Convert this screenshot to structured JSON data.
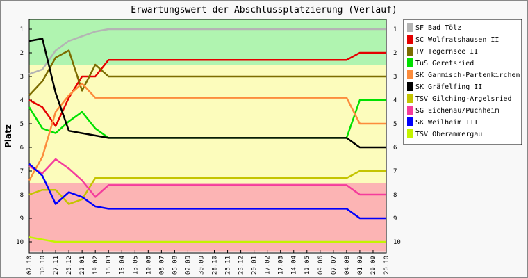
{
  "chart_data": {
    "type": "line",
    "title": "Erwartungswert der Abschlussplatzierung (Verlauf)",
    "ylabel": "Platz",
    "xlabel": "",
    "ylim": [
      1,
      10
    ],
    "y_inverted": true,
    "y_ticks": [
      "1",
      "2",
      "3",
      "4",
      "5",
      "6",
      "7",
      "8",
      "9",
      "10"
    ],
    "background_bands": [
      {
        "from": 0.6,
        "to": 2.5,
        "color": "#b0f4b0"
      },
      {
        "from": 2.5,
        "to": 7.5,
        "color": "#fcfcbc"
      },
      {
        "from": 7.5,
        "to": 10.4,
        "color": "#fcb4b4"
      }
    ],
    "categories": [
      "02.10",
      "30.10",
      "27.11",
      "25.12",
      "22.01",
      "19.02",
      "18.03",
      "15.04",
      "13.05",
      "10.06",
      "08.07",
      "05.08",
      "02.09",
      "30.09",
      "28.10",
      "25.11",
      "23.12",
      "20.01",
      "17.02",
      "17.03",
      "14.04",
      "12.05",
      "09.06",
      "07.07",
      "04.08",
      "01.09",
      "29.09",
      "20.10"
    ],
    "legend_position": "right",
    "series": [
      {
        "name": "SF Bad Tölz",
        "color": "#b4b4b4",
        "values": [
          2.9,
          2.7,
          1.9,
          1.5,
          1.3,
          1.1,
          1.0,
          1.0,
          1.0,
          1.0,
          1.0,
          1.0,
          1.0,
          1.0,
          1.0,
          1.0,
          1.0,
          1.0,
          1.0,
          1.0,
          1.0,
          1.0,
          1.0,
          1.0,
          1.0,
          1.0,
          1.0,
          1.0
        ]
      },
      {
        "name": "SC Wolfratshausen II",
        "color": "#e40000",
        "values": [
          4.0,
          4.3,
          5.1,
          3.9,
          3.0,
          3.0,
          2.3,
          2.3,
          2.3,
          2.3,
          2.3,
          2.3,
          2.3,
          2.3,
          2.3,
          2.3,
          2.3,
          2.3,
          2.3,
          2.3,
          2.3,
          2.3,
          2.3,
          2.3,
          2.3,
          2.0,
          2.0,
          2.0
        ]
      },
      {
        "name": "TV Tegernsee II",
        "color": "#7c6c00",
        "values": [
          3.8,
          3.2,
          2.2,
          1.9,
          3.6,
          2.5,
          3.0,
          3.0,
          3.0,
          3.0,
          3.0,
          3.0,
          3.0,
          3.0,
          3.0,
          3.0,
          3.0,
          3.0,
          3.0,
          3.0,
          3.0,
          3.0,
          3.0,
          3.0,
          3.0,
          3.0,
          3.0,
          3.0
        ]
      },
      {
        "name": "TuS Geretsried",
        "color": "#00e000",
        "values": [
          4.3,
          5.2,
          5.4,
          4.9,
          4.5,
          5.2,
          5.6,
          5.6,
          5.6,
          5.6,
          5.6,
          5.6,
          5.6,
          5.6,
          5.6,
          5.6,
          5.6,
          5.6,
          5.6,
          5.6,
          5.6,
          5.6,
          5.6,
          5.6,
          5.6,
          4.0,
          4.0,
          4.0
        ]
      },
      {
        "name": "SK Garmisch-Partenkirchen",
        "color": "#fc8c3c",
        "values": [
          7.4,
          6.4,
          4.5,
          3.8,
          3.3,
          3.9,
          3.9,
          3.9,
          3.9,
          3.9,
          3.9,
          3.9,
          3.9,
          3.9,
          3.9,
          3.9,
          3.9,
          3.9,
          3.9,
          3.9,
          3.9,
          3.9,
          3.9,
          3.9,
          3.9,
          5.0,
          5.0,
          5.0
        ]
      },
      {
        "name": "SK Gräfelfing II",
        "color": "#000000",
        "values": [
          1.5,
          1.4,
          3.7,
          5.3,
          5.4,
          5.5,
          5.6,
          5.6,
          5.6,
          5.6,
          5.6,
          5.6,
          5.6,
          5.6,
          5.6,
          5.6,
          5.6,
          5.6,
          5.6,
          5.6,
          5.6,
          5.6,
          5.6,
          5.6,
          5.6,
          6.0,
          6.0,
          6.0
        ]
      },
      {
        "name": "TSV Gilching-Argelsried",
        "color": "#c4c400",
        "values": [
          8.0,
          7.8,
          7.8,
          8.4,
          8.2,
          7.3,
          7.3,
          7.3,
          7.3,
          7.3,
          7.3,
          7.3,
          7.3,
          7.3,
          7.3,
          7.3,
          7.3,
          7.3,
          7.3,
          7.3,
          7.3,
          7.3,
          7.3,
          7.3,
          7.3,
          7.0,
          7.0,
          7.0
        ]
      },
      {
        "name": "SG Eichenau/Puchheim",
        "color": "#f43c9c",
        "values": [
          6.8,
          7.1,
          6.5,
          6.9,
          7.4,
          8.1,
          7.6,
          7.6,
          7.6,
          7.6,
          7.6,
          7.6,
          7.6,
          7.6,
          7.6,
          7.6,
          7.6,
          7.6,
          7.6,
          7.6,
          7.6,
          7.6,
          7.6,
          7.6,
          7.6,
          8.0,
          8.0,
          8.0
        ]
      },
      {
        "name": "SK Weilheim III",
        "color": "#0000fc",
        "values": [
          6.7,
          7.2,
          8.4,
          7.9,
          8.1,
          8.5,
          8.6,
          8.6,
          8.6,
          8.6,
          8.6,
          8.6,
          8.6,
          8.6,
          8.6,
          8.6,
          8.6,
          8.6,
          8.6,
          8.6,
          8.6,
          8.6,
          8.6,
          8.6,
          8.6,
          9.0,
          9.0,
          9.0
        ]
      },
      {
        "name": "TSV Oberammergau",
        "color": "#c4f400",
        "values": [
          9.8,
          9.9,
          10.0,
          10.0,
          10.0,
          10.0,
          10.0,
          10.0,
          10.0,
          10.0,
          10.0,
          10.0,
          10.0,
          10.0,
          10.0,
          10.0,
          10.0,
          10.0,
          10.0,
          10.0,
          10.0,
          10.0,
          10.0,
          10.0,
          10.0,
          10.0,
          10.0,
          10.0
        ]
      }
    ]
  }
}
